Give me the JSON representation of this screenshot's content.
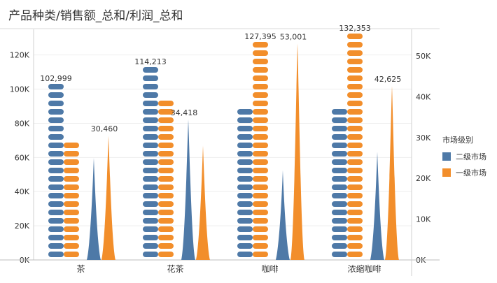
{
  "title": "产品种类/销售额_总和/利润_总和",
  "colors": {
    "二级市场": "#4e79a7",
    "一级市场": "#f28e2b"
  },
  "legend": {
    "title": "市场级别",
    "items": [
      "二级市场",
      "一级市场"
    ]
  },
  "chart_data": {
    "type": "bar",
    "categories": [
      "茶",
      "花茶",
      "咖啡",
      "浓缩咖啡"
    ],
    "sales_series": [
      {
        "name": "二级市场",
        "values": [
          102999,
          114213,
          88000,
          88000
        ]
      },
      {
        "name": "一级市场",
        "values": [
          68000,
          92000,
          127395,
          132353
        ]
      }
    ],
    "profit_series": [
      {
        "name": "二级市场",
        "values": [
          25000,
          34418,
          22000,
          26500
        ]
      },
      {
        "name": "一级市场",
        "values": [
          30460,
          28000,
          53001,
          42625
        ]
      }
    ],
    "left_axis": {
      "ylim": [
        0,
        135000
      ],
      "ticks": [
        "0K",
        "20K",
        "40K",
        "60K",
        "80K",
        "100K",
        "120K"
      ]
    },
    "right_axis": {
      "ylim": [
        0,
        56500
      ],
      "ticks": [
        "0K",
        "10K",
        "20K",
        "30K",
        "40K",
        "50K"
      ]
    },
    "bar_labels": [
      {
        "category": "茶",
        "series": "二级市场",
        "text": "102,999"
      },
      {
        "category": "花茶",
        "series": "二级市场",
        "text": "114,213"
      },
      {
        "category": "咖啡",
        "series": "一级市场",
        "text": "127,395"
      },
      {
        "category": "浓缩咖啡",
        "series": "一级市场",
        "text": "132,353"
      }
    ],
    "spike_labels": [
      {
        "category": "茶",
        "series": "一级市场",
        "text": "30,460"
      },
      {
        "category": "花茶",
        "series": "二级市场",
        "text": "34,418"
      },
      {
        "category": "咖啡",
        "series": "一级市场",
        "text": "53,001"
      },
      {
        "category": "浓缩咖啡",
        "series": "一级市场",
        "text": "42,625"
      }
    ],
    "grid": true
  }
}
